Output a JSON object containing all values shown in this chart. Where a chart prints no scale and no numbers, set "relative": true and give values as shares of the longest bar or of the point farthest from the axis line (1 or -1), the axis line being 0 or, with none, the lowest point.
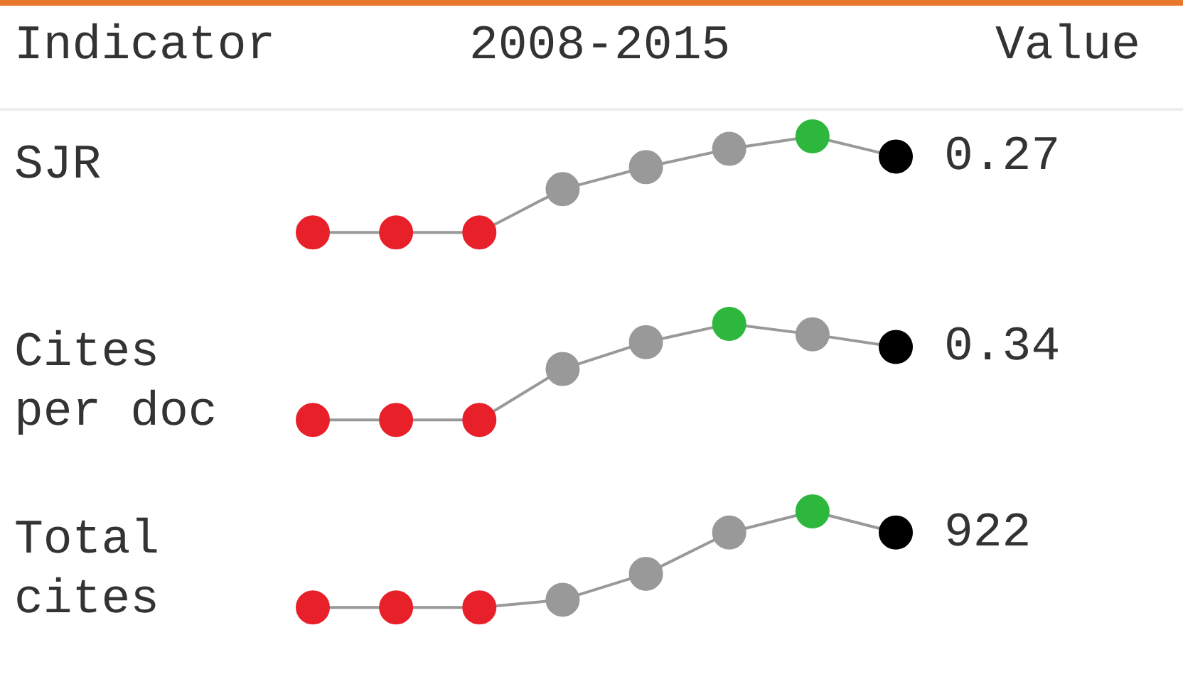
{
  "chart_data": [
    {
      "type": "other",
      "annotations": [
        "Indicator",
        "2008-2015",
        "Value"
      ]
    },
    {
      "type": "line",
      "title": "SJR",
      "relative": true,
      "categories": [
        null,
        null,
        null,
        null,
        null,
        null,
        null,
        null
      ],
      "marker": "circle",
      "legend": false,
      "annotations": [
        "0.27"
      ],
      "series": [
        {
          "color": "#999999",
          "colors": [
            "#e8202a",
            "#e8202a",
            "#e8202a",
            "#999999",
            "#999999",
            "#999999",
            "#2db83d",
            "#000000"
          ],
          "values": [
            0,
            0,
            0,
            0.45,
            0.68,
            0.87,
            1,
            0.79
          ]
        }
      ]
    },
    {
      "type": "line",
      "title": "Cites\nper doc",
      "relative": true,
      "categories": [
        null,
        null,
        null,
        null,
        null,
        null,
        null,
        null
      ],
      "marker": "circle",
      "legend": false,
      "annotations": [
        "0.34"
      ],
      "series": [
        {
          "color": "#999999",
          "colors": [
            "#e8202a",
            "#e8202a",
            "#e8202a",
            "#999999",
            "#999999",
            "#2db83d",
            "#999999",
            "#000000"
          ],
          "values": [
            0,
            0,
            0,
            0.53,
            0.81,
            1,
            0.89,
            0.76
          ]
        }
      ]
    },
    {
      "type": "line",
      "title": "Total\ncites",
      "relative": true,
      "categories": [
        null,
        null,
        null,
        null,
        null,
        null,
        null,
        null
      ],
      "marker": "circle",
      "legend": false,
      "annotations": [
        "922"
      ],
      "series": [
        {
          "color": "#999999",
          "colors": [
            "#e8202a",
            "#e8202a",
            "#e8202a",
            "#999999",
            "#999999",
            "#999999",
            "#2db83d",
            "#000000"
          ],
          "values": [
            0,
            0,
            0,
            0.08,
            0.35,
            0.78,
            1,
            0.78
          ]
        }
      ]
    }
  ]
}
